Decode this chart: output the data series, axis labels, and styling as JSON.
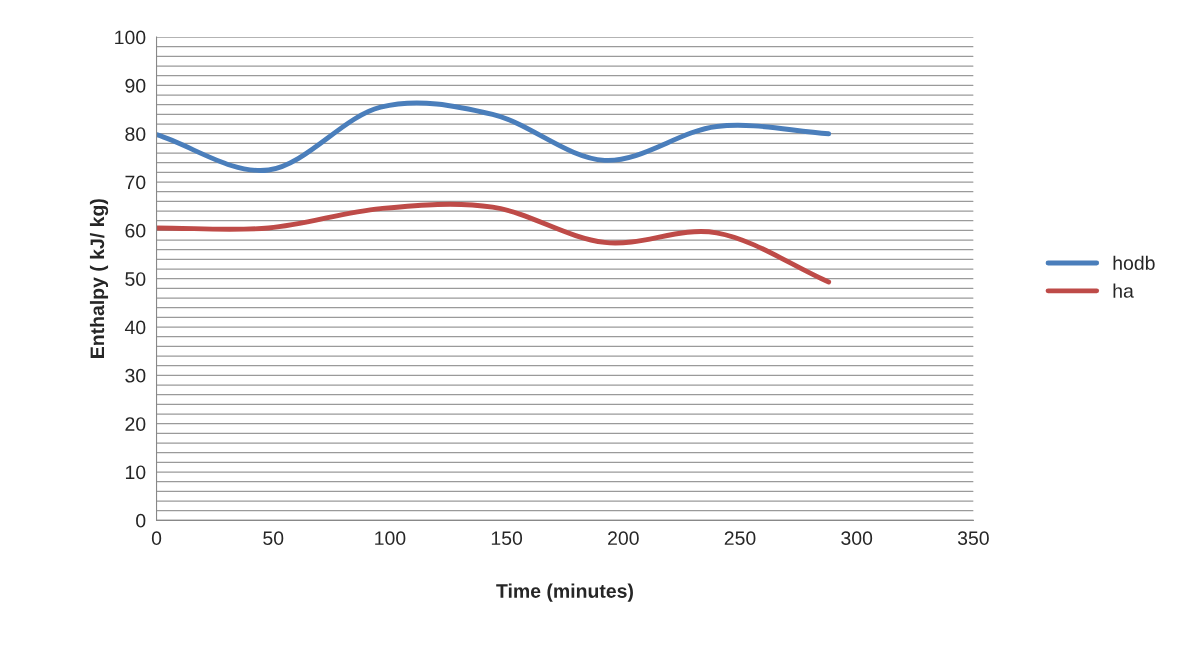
{
  "chart_data": {
    "type": "line",
    "xlabel": "Time (minutes)",
    "ylabel": "Enthalpy ( kJ/ kg)",
    "x": [
      0,
      48,
      96,
      144,
      192,
      240,
      288
    ],
    "series": [
      {
        "name": "hodb",
        "color": "#4a7ebb",
        "values": [
          79.8,
          72.5,
          85.5,
          84,
          74.5,
          81.5,
          80
        ]
      },
      {
        "name": "ha",
        "color": "#be4b48",
        "values": [
          60.5,
          60.5,
          64.5,
          64.8,
          57.5,
          59.5,
          49.3
        ]
      }
    ],
    "xlim": [
      0,
      350
    ],
    "xticks": [
      0,
      50,
      100,
      150,
      200,
      250,
      300,
      350
    ],
    "ylim": [
      0,
      100
    ],
    "yticks": [
      0,
      {
        "value": 2,
        "label": null
      },
      {
        "value": 4,
        "label": null
      },
      {
        "value": 6,
        "label": null
      },
      {
        "value": 8,
        "label": null
      },
      10,
      {
        "value": 12,
        "label": null
      },
      {
        "value": 14,
        "label": null
      },
      {
        "value": 16,
        "label": null
      },
      {
        "value": 18,
        "label": null
      },
      20,
      {
        "value": 22,
        "label": null
      },
      {
        "value": 24,
        "label": null
      },
      {
        "value": 26,
        "label": null
      },
      {
        "value": 28,
        "label": null
      },
      30,
      {
        "value": 32,
        "label": null
      },
      {
        "value": 34,
        "label": null
      },
      {
        "value": 36,
        "label": null
      },
      {
        "value": 38,
        "label": null
      },
      40,
      {
        "value": 42,
        "label": null
      },
      {
        "value": 44,
        "label": null
      },
      {
        "value": 46,
        "label": null
      },
      {
        "value": 48,
        "label": null
      },
      50,
      {
        "value": 52,
        "label": null
      },
      {
        "value": 54,
        "label": null
      },
      {
        "value": 56,
        "label": null
      },
      {
        "value": 58,
        "label": null
      },
      60,
      {
        "value": 62,
        "label": null
      },
      {
        "value": 64,
        "label": null
      },
      {
        "value": 66,
        "label": null
      },
      {
        "value": 68,
        "label": null
      },
      70,
      {
        "value": 72,
        "label": null
      },
      {
        "value": 74,
        "label": null
      },
      {
        "value": 76,
        "label": null
      },
      {
        "value": 78,
        "label": null
      },
      80,
      {
        "value": 82,
        "label": null
      },
      {
        "value": 84,
        "label": null
      },
      {
        "value": 86,
        "label": null
      },
      {
        "value": 88,
        "label": null
      },
      90,
      {
        "value": 92,
        "label": null
      },
      {
        "value": 94,
        "label": null
      },
      {
        "value": 96,
        "label": null
      },
      {
        "value": 98,
        "label": null
      },
      100
    ],
    "grid": "y",
    "legend": "right",
    "marker": "none",
    "line_style": "solid"
  }
}
